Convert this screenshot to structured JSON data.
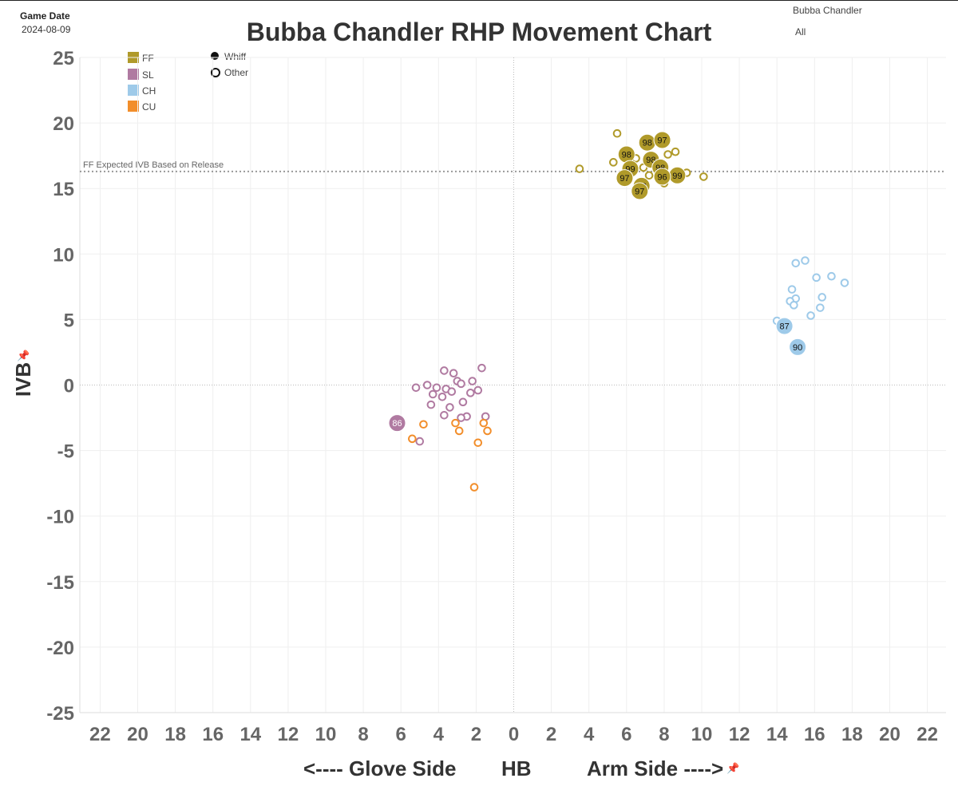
{
  "header": {
    "game_date_label": "Game Date",
    "game_date_value": "2024-08-09",
    "pitcher_filter": "Bubba Chandler",
    "pitch_filter": "All"
  },
  "chart_data": {
    "type": "scatter",
    "title": "Bubba Chandler RHP Movement Chart",
    "xlabel": "HB",
    "xlabel_left": "<---- Glove Side",
    "xlabel_right": "Arm Side ---->",
    "ylabel": "IVB",
    "xlim": [
      -23,
      23
    ],
    "ylim": [
      -25,
      25
    ],
    "x_ticks": [
      -22,
      -20,
      -18,
      -16,
      -14,
      -12,
      -10,
      -8,
      -6,
      -4,
      -2,
      0,
      2,
      4,
      6,
      8,
      10,
      12,
      14,
      16,
      18,
      20,
      22
    ],
    "x_tick_labels": [
      "22",
      "20",
      "18",
      "16",
      "14",
      "12",
      "10",
      "8",
      "6",
      "4",
      "2",
      "0",
      "2",
      "4",
      "6",
      "8",
      "10",
      "12",
      "14",
      "16",
      "18",
      "20",
      "22"
    ],
    "y_ticks": [
      25,
      20,
      15,
      10,
      5,
      0,
      -5,
      -10,
      -15,
      -20,
      -25
    ],
    "y_tick_labels": [
      "25",
      "20",
      "15",
      "10",
      "5",
      "0",
      "-5",
      "-10",
      "-15",
      "-20",
      "-25"
    ],
    "grid": true,
    "reference_line": {
      "label": "FF Expected IVB Based on Release",
      "y": 16.3
    },
    "legend_color": [
      {
        "name": "FF",
        "color": "#b09a2a"
      },
      {
        "name": "SL",
        "color": "#b07aa1"
      },
      {
        "name": "CH",
        "color": "#9ecae9"
      },
      {
        "name": "CU",
        "color": "#f28e2b"
      }
    ],
    "legend_shape": [
      {
        "name": "Whiff",
        "shape": "filled-circle"
      },
      {
        "name": "Other",
        "shape": "open-circle"
      }
    ],
    "series": [
      {
        "pitch": "FF",
        "color": "#b09a2a",
        "whiffs": [
          {
            "x": 6.0,
            "y": 17.6,
            "label": "98"
          },
          {
            "x": 7.1,
            "y": 18.5,
            "label": "98"
          },
          {
            "x": 7.9,
            "y": 18.7,
            "label": "97"
          },
          {
            "x": 6.2,
            "y": 16.5,
            "label": "99"
          },
          {
            "x": 7.3,
            "y": 17.2,
            "label": "98"
          },
          {
            "x": 7.8,
            "y": 16.6,
            "label": "98"
          },
          {
            "x": 5.9,
            "y": 15.8,
            "label": "97"
          },
          {
            "x": 8.7,
            "y": 16.0,
            "label": "99"
          },
          {
            "x": 7.9,
            "y": 15.9,
            "label": "96"
          },
          {
            "x": 6.8,
            "y": 15.2,
            "label": "98"
          },
          {
            "x": 6.7,
            "y": 14.8,
            "label": "97"
          }
        ],
        "other": [
          {
            "x": 3.5,
            "y": 16.5
          },
          {
            "x": 5.5,
            "y": 19.2
          },
          {
            "x": 5.3,
            "y": 17.0
          },
          {
            "x": 6.5,
            "y": 17.3
          },
          {
            "x": 8.2,
            "y": 17.6
          },
          {
            "x": 8.6,
            "y": 17.8
          },
          {
            "x": 9.2,
            "y": 16.2
          },
          {
            "x": 10.1,
            "y": 15.9
          },
          {
            "x": 8.0,
            "y": 15.4
          },
          {
            "x": 7.2,
            "y": 16.0
          },
          {
            "x": 6.9,
            "y": 16.6
          }
        ]
      },
      {
        "pitch": "SL",
        "color": "#b07aa1",
        "whiffs": [
          {
            "x": -6.2,
            "y": -2.9,
            "label": "86"
          }
        ],
        "other": [
          {
            "x": -1.7,
            "y": 1.3
          },
          {
            "x": -3.7,
            "y": 1.1
          },
          {
            "x": -3.2,
            "y": 0.9
          },
          {
            "x": -2.2,
            "y": 0.3
          },
          {
            "x": -3.0,
            "y": 0.3
          },
          {
            "x": -2.8,
            "y": 0.1
          },
          {
            "x": -4.6,
            "y": 0.0
          },
          {
            "x": -5.2,
            "y": -0.2
          },
          {
            "x": -4.1,
            "y": -0.2
          },
          {
            "x": -3.6,
            "y": -0.3
          },
          {
            "x": -1.9,
            "y": -0.4
          },
          {
            "x": -3.3,
            "y": -0.5
          },
          {
            "x": -2.3,
            "y": -0.6
          },
          {
            "x": -4.3,
            "y": -0.7
          },
          {
            "x": -3.8,
            "y": -0.9
          },
          {
            "x": -2.7,
            "y": -1.3
          },
          {
            "x": -4.4,
            "y": -1.5
          },
          {
            "x": -3.4,
            "y": -1.7
          },
          {
            "x": -3.7,
            "y": -2.3
          },
          {
            "x": -2.5,
            "y": -2.4
          },
          {
            "x": -2.8,
            "y": -2.5
          },
          {
            "x": -1.5,
            "y": -2.4
          },
          {
            "x": -5.0,
            "y": -4.3
          }
        ]
      },
      {
        "pitch": "CH",
        "color": "#9ecae9",
        "whiffs": [
          {
            "x": 14.4,
            "y": 4.5,
            "label": "87"
          },
          {
            "x": 15.1,
            "y": 2.9,
            "label": "90"
          }
        ],
        "other": [
          {
            "x": 15.5,
            "y": 9.5
          },
          {
            "x": 15.0,
            "y": 9.3
          },
          {
            "x": 16.9,
            "y": 8.3
          },
          {
            "x": 16.1,
            "y": 8.2
          },
          {
            "x": 17.6,
            "y": 7.8
          },
          {
            "x": 14.8,
            "y": 7.3
          },
          {
            "x": 16.4,
            "y": 6.7
          },
          {
            "x": 15.0,
            "y": 6.6
          },
          {
            "x": 14.7,
            "y": 6.4
          },
          {
            "x": 14.9,
            "y": 6.1
          },
          {
            "x": 16.3,
            "y": 5.9
          },
          {
            "x": 15.8,
            "y": 5.3
          },
          {
            "x": 14.0,
            "y": 4.9
          }
        ]
      },
      {
        "pitch": "CU",
        "color": "#f28e2b",
        "whiffs": [],
        "other": [
          {
            "x": -4.8,
            "y": -3.0
          },
          {
            "x": -3.1,
            "y": -2.9
          },
          {
            "x": -1.6,
            "y": -2.9
          },
          {
            "x": -2.9,
            "y": -3.5
          },
          {
            "x": -1.4,
            "y": -3.5
          },
          {
            "x": -5.4,
            "y": -4.1
          },
          {
            "x": -1.9,
            "y": -4.4
          },
          {
            "x": -2.1,
            "y": -7.8
          }
        ]
      }
    ]
  }
}
